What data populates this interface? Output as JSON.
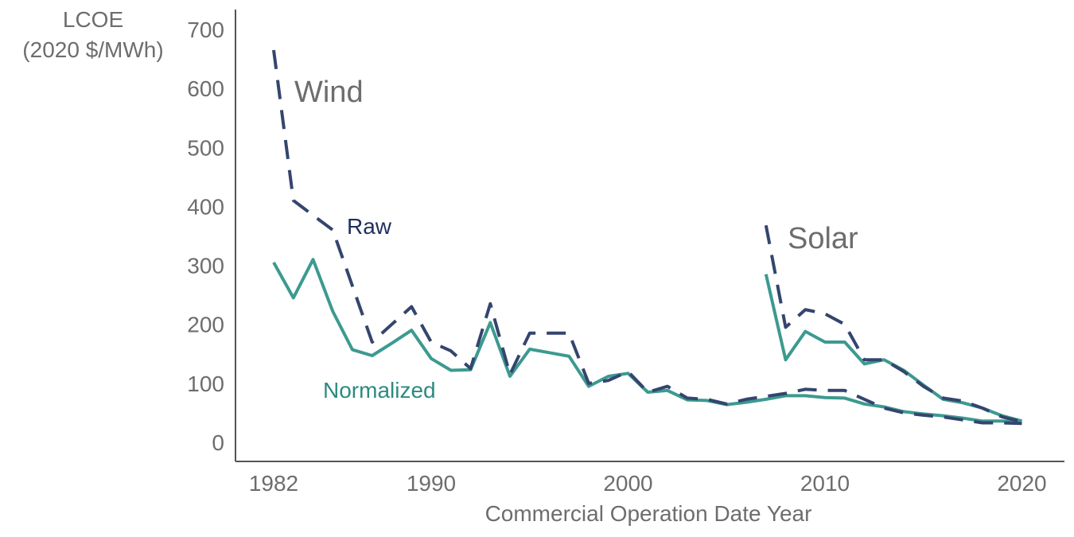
{
  "chart_data": {
    "type": "line",
    "ylabel_line1": "LCOE",
    "ylabel_line2": "(2020 $/MWh)",
    "xlabel": "Commercial Operation Date Year",
    "xlim": [
      1981,
      2022
    ],
    "ylim": [
      0,
      700
    ],
    "x_ticks": [
      1982,
      1990,
      2000,
      2010,
      2020
    ],
    "y_ticks": [
      0,
      100,
      200,
      300,
      400,
      500,
      600,
      700
    ],
    "grid": false,
    "colors": {
      "raw": "#34456e",
      "normalized": "#3c9a90",
      "text": "#6d6d6d"
    },
    "annotations": {
      "wind": "Wind",
      "solar": "Solar",
      "raw": "Raw",
      "normalized": "Normalized"
    },
    "series": [
      {
        "name": "Raw",
        "group": "Wind",
        "style": "dashed",
        "x": [
          1982,
          1983,
          1984,
          1985,
          1986,
          1987,
          1988,
          1989,
          1990,
          1991,
          1992,
          1993,
          1994,
          1995,
          1996,
          1997,
          1998,
          1999,
          2000,
          2001,
          2002,
          2003,
          2004,
          2005,
          2006,
          2007,
          2008,
          2009,
          2010,
          2011,
          2012,
          2013,
          2014,
          2015,
          2016,
          2017,
          2018,
          2019,
          2020
        ],
        "y": [
          665,
          410,
          385,
          360,
          265,
          170,
          200,
          230,
          170,
          155,
          125,
          235,
          115,
          185,
          185,
          185,
          100,
          105,
          120,
          85,
          95,
          75,
          73,
          65,
          73,
          78,
          83,
          90,
          88,
          88,
          73,
          58,
          50,
          46,
          43,
          38,
          33,
          33,
          32
        ]
      },
      {
        "name": "Normalized",
        "group": "Wind",
        "style": "solid",
        "x": [
          1982,
          1983,
          1984,
          1985,
          1986,
          1987,
          1988,
          1989,
          1990,
          1991,
          1992,
          1993,
          1994,
          1995,
          1996,
          1997,
          1998,
          1999,
          2000,
          2001,
          2002,
          2003,
          2004,
          2005,
          2006,
          2007,
          2008,
          2009,
          2010,
          2011,
          2012,
          2013,
          2014,
          2015,
          2016,
          2017,
          2018,
          2019,
          2020
        ],
        "y": [
          305,
          245,
          310,
          222,
          157,
          147,
          168,
          190,
          142,
          122,
          123,
          203,
          112,
          158,
          152,
          146,
          95,
          112,
          117,
          85,
          88,
          72,
          71,
          64,
          68,
          73,
          79,
          79,
          76,
          75,
          65,
          60,
          52,
          48,
          45,
          41,
          36,
          36,
          34
        ]
      },
      {
        "name": "Raw",
        "group": "Solar",
        "style": "dashed",
        "x": [
          2007,
          2008,
          2009,
          2010,
          2011,
          2012,
          2013,
          2014,
          2015,
          2016,
          2017,
          2018,
          2019,
          2020
        ],
        "y": [
          368,
          195,
          225,
          218,
          200,
          140,
          140,
          120,
          95,
          75,
          70,
          58,
          43,
          35
        ]
      },
      {
        "name": "Normalized",
        "group": "Solar",
        "style": "solid",
        "x": [
          2007,
          2008,
          2009,
          2010,
          2011,
          2012,
          2013,
          2014,
          2015,
          2016,
          2017,
          2018,
          2019,
          2020
        ],
        "y": [
          285,
          140,
          188,
          170,
          170,
          133,
          140,
          122,
          97,
          73,
          67,
          58,
          45,
          36
        ]
      }
    ]
  }
}
